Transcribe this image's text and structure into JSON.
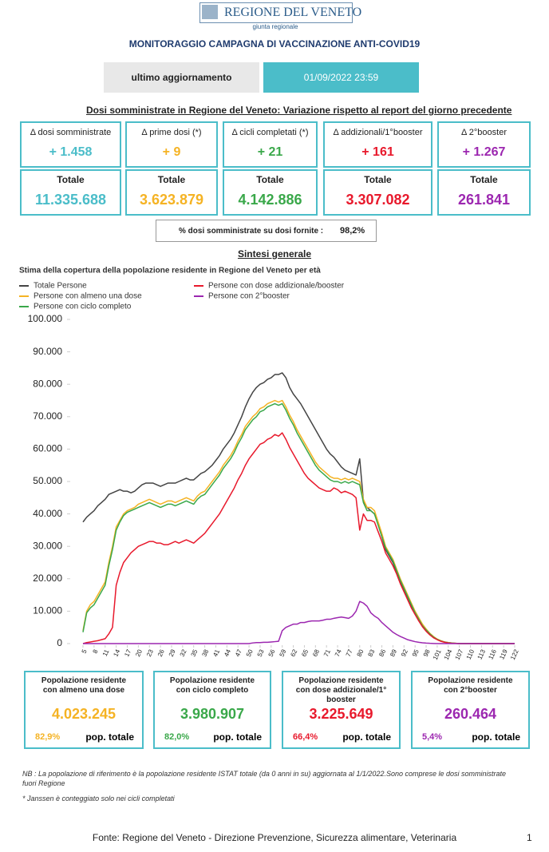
{
  "header": {
    "logo_title": "REGIONE DEL VENETO",
    "logo_subtitle": "giunta regionale",
    "title": "MONITORAGGIO CAMPAGNA DI VACCINAZIONE ANTI-COVID19"
  },
  "update": {
    "label": "ultimo aggiornamento",
    "value": "01/09/2022 23:59"
  },
  "doses": {
    "title": "Dosi somministrate in Regione del Veneto: Variazione rispetto al report del giorno precedente",
    "cards": [
      {
        "label": "Δ dosi somministrate",
        "delta": "+ 1.458",
        "total_label": "Totale",
        "total": "11.335.688",
        "color": "#4bbdc9"
      },
      {
        "label": "Δ prime dosi (*)",
        "delta": "+ 9",
        "total_label": "Totale",
        "total": "3.623.879",
        "color": "#f5b324"
      },
      {
        "label": "Δ cicli completati (*)",
        "delta": "+ 21",
        "total_label": "Totale",
        "total": "4.142.886",
        "color": "#3aa84a"
      },
      {
        "label": "Δ addizionali/1°booster",
        "delta": "+ 161",
        "total_label": "Totale",
        "total": "3.307.082",
        "color": "#e8192c"
      },
      {
        "label": "Δ 2°booster",
        "delta": "+ 1.267",
        "total_label": "Totale",
        "total": "261.841",
        "color": "#9c27b0"
      }
    ]
  },
  "percent": {
    "label": "% dosi somministrate su dosi fornite :",
    "value": "98,2%"
  },
  "summary_title": "Sintesi generale",
  "chart_data": {
    "type": "line",
    "title": "Stima della copertura della popolazione residente in Regione del Veneto per età",
    "legend": "top-left",
    "x": [
      5,
      6,
      7,
      8,
      9,
      10,
      11,
      12,
      13,
      14,
      15,
      16,
      17,
      18,
      19,
      20,
      21,
      22,
      23,
      24,
      25,
      26,
      27,
      28,
      29,
      30,
      31,
      32,
      33,
      34,
      35,
      36,
      37,
      38,
      39,
      40,
      41,
      42,
      43,
      44,
      45,
      46,
      47,
      48,
      49,
      50,
      51,
      52,
      53,
      54,
      55,
      56,
      57,
      58,
      59,
      60,
      61,
      62,
      63,
      64,
      65,
      66,
      67,
      68,
      69,
      70,
      71,
      72,
      73,
      74,
      75,
      76,
      77,
      78,
      79,
      80,
      81,
      82,
      83,
      84,
      85,
      86,
      87,
      88,
      89,
      90,
      91,
      92,
      93,
      94,
      95,
      96,
      97,
      98,
      99,
      100,
      101,
      102,
      103,
      104,
      105,
      106,
      107,
      108,
      109,
      110,
      111,
      112,
      113,
      114,
      115,
      116,
      117,
      118,
      119,
      120,
      121,
      122
    ],
    "xlim": [
      5,
      122
    ],
    "xticks": [
      5,
      8,
      11,
      14,
      17,
      20,
      23,
      26,
      29,
      32,
      35,
      38,
      41,
      44,
      47,
      50,
      53,
      56,
      59,
      62,
      65,
      68,
      71,
      74,
      77,
      80,
      83,
      86,
      89,
      92,
      95,
      98,
      101,
      104,
      107,
      110,
      113,
      116,
      119,
      122
    ],
    "ylim": [
      0,
      100000
    ],
    "yticks": [
      0,
      {
        "value": 10000,
        "label": "10.000"
      },
      {
        "value": 20000,
        "label": "20.000"
      },
      {
        "value": 30000,
        "label": "30.000"
      },
      {
        "value": 40000,
        "label": "40.000"
      },
      {
        "value": 50000,
        "label": "50.000"
      },
      {
        "value": 60000,
        "label": "60.000"
      },
      {
        "value": 70000,
        "label": "70.000"
      },
      {
        "value": 80000,
        "label": "80.000"
      },
      {
        "value": 90000,
        "label": "90.000"
      },
      {
        "value": 100000,
        "label": "100.000"
      }
    ],
    "series": [
      {
        "name": "Totale Persone",
        "color": "#444444",
        "values": [
          37500,
          39000,
          40000,
          41000,
          42500,
          43500,
          44500,
          46000,
          46500,
          47000,
          47500,
          47000,
          47000,
          46500,
          47000,
          48000,
          49000,
          49500,
          49500,
          49500,
          49000,
          48500,
          49000,
          49500,
          49500,
          49500,
          50000,
          50500,
          51000,
          50500,
          50500,
          51500,
          52500,
          53000,
          54000,
          55000,
          56500,
          58000,
          60000,
          61500,
          63000,
          65000,
          67500,
          70000,
          73000,
          75500,
          77500,
          79000,
          80000,
          80500,
          81500,
          82000,
          83000,
          83000,
          83500,
          82000,
          79000,
          77000,
          75500,
          74000,
          72000,
          70000,
          68000,
          66000,
          64000,
          62000,
          60000,
          58500,
          57500,
          56000,
          54500,
          53500,
          53000,
          52500,
          52000,
          57000,
          44000,
          42000,
          41000,
          40000,
          37000,
          33000,
          29000,
          27000,
          25000,
          22000,
          19000,
          16500,
          14000,
          11500,
          9500,
          7500,
          5500,
          4000,
          3000,
          2000,
          1300,
          800,
          500,
          300,
          200,
          100,
          0,
          0,
          0,
          0,
          0,
          0,
          0,
          0,
          0,
          0,
          0,
          0,
          0,
          0,
          0,
          0
        ]
      },
      {
        "name": "Persone con almeno una dose",
        "color": "#f5b324",
        "values": [
          4000,
          10000,
          12000,
          13000,
          15000,
          17000,
          19000,
          25000,
          30000,
          36000,
          38000,
          40000,
          41000,
          41500,
          42000,
          43000,
          43500,
          44000,
          44500,
          44000,
          43500,
          43000,
          43500,
          44000,
          44000,
          43500,
          44000,
          44500,
          45000,
          44500,
          44000,
          45500,
          46500,
          47000,
          48500,
          50000,
          51500,
          53000,
          55000,
          56500,
          58000,
          60000,
          62500,
          64500,
          67000,
          68500,
          70000,
          71000,
          72500,
          73000,
          74000,
          74500,
          75000,
          74500,
          75000,
          73000,
          70500,
          68500,
          66000,
          64000,
          62000,
          60000,
          58000,
          56000,
          54500,
          53500,
          52500,
          51500,
          51000,
          51000,
          50500,
          51000,
          50500,
          51000,
          50500,
          50000,
          44500,
          42000,
          42000,
          41000,
          37500,
          34000,
          30000,
          28000,
          26000,
          23000,
          20000,
          17500,
          15000,
          12500,
          10000,
          8000,
          6000,
          4500,
          3200,
          2200,
          1400,
          900,
          500,
          300,
          150,
          80,
          0,
          0,
          0,
          0,
          0,
          0,
          0,
          0,
          0,
          0,
          0,
          0,
          0,
          0,
          0,
          0
        ]
      },
      {
        "name": "Persone con ciclo completo",
        "color": "#3aa84a",
        "values": [
          3500,
          9500,
          11000,
          12000,
          14000,
          16000,
          18000,
          24000,
          29000,
          35000,
          37500,
          39500,
          40500,
          41000,
          41500,
          42000,
          42500,
          43000,
          43500,
          43000,
          42500,
          42000,
          42500,
          43000,
          43000,
          42500,
          43000,
          43500,
          44000,
          43500,
          43000,
          44500,
          45500,
          46000,
          47500,
          49000,
          50500,
          52000,
          54000,
          55500,
          57000,
          59000,
          61500,
          63500,
          66000,
          67500,
          69000,
          70000,
          71500,
          72000,
          73000,
          73500,
          74000,
          73500,
          74000,
          72000,
          69500,
          67500,
          65000,
          63000,
          61000,
          59000,
          57000,
          55000,
          53500,
          52500,
          51500,
          50500,
          50000,
          50000,
          49500,
          50000,
          49500,
          50000,
          49500,
          49000,
          43500,
          41000,
          41000,
          40000,
          36500,
          33000,
          29500,
          27500,
          25500,
          22500,
          19500,
          17000,
          14500,
          12000,
          9500,
          7500,
          5500,
          4200,
          3000,
          2000,
          1300,
          800,
          450,
          250,
          120,
          60,
          0,
          0,
          0,
          0,
          0,
          0,
          0,
          0,
          0,
          0,
          0,
          0,
          0,
          0,
          0,
          0
        ]
      },
      {
        "name": "Persone con dose addizionale/booster",
        "color": "#e8192c",
        "values": [
          0,
          300,
          500,
          700,
          900,
          1200,
          1500,
          3000,
          5000,
          18000,
          22000,
          25000,
          26500,
          28000,
          29000,
          30000,
          30500,
          31000,
          31500,
          31500,
          31000,
          31000,
          30500,
          30500,
          31000,
          31500,
          31000,
          31500,
          32000,
          31500,
          31000,
          32000,
          33000,
          34000,
          35500,
          37000,
          38500,
          40000,
          42000,
          44000,
          46000,
          48000,
          50500,
          52500,
          55000,
          57000,
          58500,
          60000,
          61500,
          62000,
          63000,
          63500,
          64500,
          64000,
          65000,
          63000,
          60500,
          58500,
          56500,
          54500,
          52500,
          51000,
          50000,
          49000,
          48000,
          47500,
          47000,
          47000,
          48000,
          47500,
          46500,
          47000,
          46500,
          46000,
          45000,
          35000,
          40000,
          38000,
          38000,
          37500,
          34500,
          31500,
          28000,
          26000,
          24000,
          21500,
          18500,
          16000,
          13500,
          11000,
          9000,
          7000,
          5200,
          3800,
          2700,
          1800,
          1200,
          700,
          400,
          200,
          100,
          50,
          0,
          0,
          0,
          0,
          0,
          0,
          0,
          0,
          0,
          0,
          0,
          0,
          0,
          0,
          0,
          0
        ]
      },
      {
        "name": "Persone con 2°booster",
        "color": "#9c27b0",
        "values": [
          0,
          0,
          0,
          0,
          0,
          0,
          0,
          0,
          0,
          0,
          0,
          0,
          0,
          0,
          0,
          0,
          0,
          0,
          0,
          0,
          0,
          0,
          0,
          0,
          0,
          0,
          0,
          0,
          0,
          0,
          0,
          0,
          0,
          0,
          0,
          0,
          0,
          0,
          0,
          0,
          0,
          0,
          0,
          0,
          0,
          0,
          200,
          300,
          300,
          400,
          400,
          500,
          600,
          700,
          4000,
          5000,
          5500,
          6000,
          6000,
          6500,
          6500,
          6800,
          7000,
          7000,
          7000,
          7200,
          7500,
          7500,
          7800,
          8000,
          8200,
          8000,
          7800,
          8500,
          10000,
          13000,
          12500,
          11500,
          9500,
          8500,
          7800,
          6500,
          5500,
          4500,
          3500,
          2800,
          2200,
          1700,
          1200,
          900,
          600,
          400,
          250,
          150,
          80,
          40,
          0,
          0,
          0,
          0,
          0,
          0,
          0,
          0,
          0,
          0,
          0,
          0,
          0,
          0,
          0,
          0,
          0,
          0,
          0,
          0,
          0,
          0
        ]
      }
    ]
  },
  "coverage": {
    "cards": [
      {
        "label": "Popolazione residente con almeno una dose",
        "value": "4.023.245",
        "pct": "82,9%",
        "pct_label": "pop. totale",
        "color": "#f5b324"
      },
      {
        "label": "Popolazione residente con ciclo completo",
        "value": "3.980.907",
        "pct": "82,0%",
        "pct_label": "pop. totale",
        "color": "#3aa84a"
      },
      {
        "label": "Popolazione residente con dose addizionale/1° booster",
        "value": "3.225.649",
        "pct": "66,4%",
        "pct_label": "pop. totale",
        "color": "#e8192c"
      },
      {
        "label": "Popolazione residente con 2°booster",
        "value": "260.464",
        "pct": "5,4%",
        "pct_label": "pop. totale",
        "color": "#9c27b0"
      }
    ]
  },
  "notes": [
    "NB : La popolazione di riferimento è la popolazione residente ISTAT totale (da 0 anni in su) aggiornata  al 1/1/2022.Sono comprese le dosi somministrate fuori Regione",
    "* Janssen è conteggiato solo nei cicli completati"
  ],
  "footer": {
    "source": "Fonte: Regione del Veneto - Direzione Prevenzione, Sicurezza alimentare, Veterinaria",
    "page": "1"
  }
}
